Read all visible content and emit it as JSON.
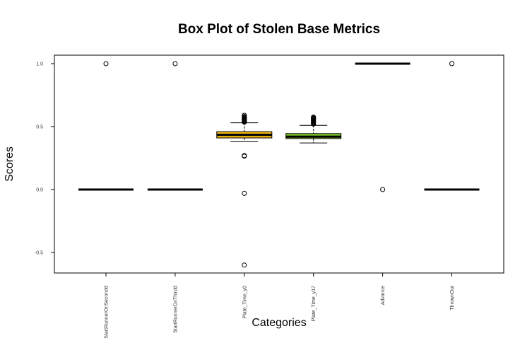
{
  "chart_data": {
    "type": "box",
    "title": "Box Plot of Stolen Base Metrics",
    "xlabel": "Categories",
    "ylabel": "Scores",
    "ylim": [
      -0.67,
      1.07
    ],
    "yticks": [
      "1.0",
      "0.5",
      "0.0",
      "-0.5"
    ],
    "ytick_values": [
      1.0,
      0.5,
      0.0,
      -0.5
    ],
    "grid": false,
    "categories": [
      "StartRunnerOnSecondd",
      "StartRunnerOnThirdd",
      "Plate_Time_y0",
      "Plate_Time_y17",
      "Advance",
      "ThrownOut"
    ],
    "boxes": [
      {
        "whisker_low": 0.0,
        "q1": 0.0,
        "median": 0.0,
        "q3": 0.0,
        "whisker_high": 0.0,
        "fill": "#ffffff",
        "outliers": [
          1.0
        ]
      },
      {
        "whisker_low": 0.0,
        "q1": 0.0,
        "median": 0.0,
        "q3": 0.0,
        "whisker_high": 0.0,
        "fill": "#ffffff",
        "outliers": [
          1.0
        ]
      },
      {
        "whisker_low": 0.38,
        "q1": 0.41,
        "median": 0.435,
        "q3": 0.46,
        "whisker_high": 0.53,
        "fill": "#f2b90f",
        "outliers": [
          0.59,
          0.58,
          0.575,
          0.57,
          0.565,
          0.56,
          0.555,
          0.55,
          0.545,
          0.54,
          0.535,
          0.27,
          0.265,
          -0.03,
          -0.6
        ]
      },
      {
        "whisker_low": 0.37,
        "q1": 0.405,
        "median": 0.42,
        "q3": 0.445,
        "whisker_high": 0.51,
        "fill": "#7bc62a",
        "outliers": [
          0.575,
          0.57,
          0.565,
          0.56,
          0.555,
          0.55,
          0.545,
          0.54,
          0.535,
          0.53,
          0.525,
          0.52
        ]
      },
      {
        "whisker_low": 1.0,
        "q1": 1.0,
        "median": 1.0,
        "q3": 1.0,
        "whisker_high": 1.0,
        "fill": "#ffffff",
        "outliers": [
          0.0
        ]
      },
      {
        "whisker_low": 0.0,
        "q1": 0.0,
        "median": 0.0,
        "q3": 0.0,
        "whisker_high": 0.0,
        "fill": "#ffffff",
        "outliers": [
          1.0
        ]
      }
    ]
  }
}
